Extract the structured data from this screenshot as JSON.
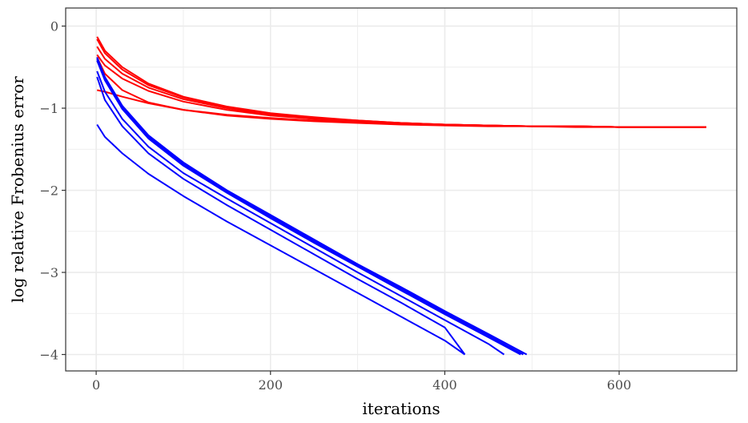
{
  "chart_data": {
    "type": "line",
    "title": "",
    "xlabel": "iterations",
    "ylabel": "log relative Frobenius error",
    "xlim": [
      -35,
      735
    ],
    "ylim": [
      -4.2,
      0.22
    ],
    "x_ticks": [
      0,
      200,
      400,
      600
    ],
    "x_tick_labels": [
      "0",
      "200",
      "400",
      "600"
    ],
    "y_ticks": [
      0,
      -1,
      -2,
      -3,
      -4
    ],
    "y_tick_labels": [
      "0",
      "−1",
      "−2",
      "−3",
      "−4"
    ],
    "grid": true,
    "legend": "none",
    "colors": {
      "red": "#ff0000",
      "blue": "#0000ff",
      "grid": "#ebebeb",
      "border": "#333333"
    },
    "series": [
      {
        "color": "#ff0000",
        "x": [
          1,
          10,
          30,
          60,
          100,
          150,
          200,
          250,
          300,
          350,
          400,
          450,
          500,
          550,
          600,
          650,
          700
        ],
        "y": [
          -0.13,
          -0.3,
          -0.5,
          -0.7,
          -0.86,
          -0.98,
          -1.06,
          -1.11,
          -1.15,
          -1.18,
          -1.2,
          -1.21,
          -1.22,
          -1.22,
          -1.23,
          -1.23,
          -1.23
        ]
      },
      {
        "color": "#ff0000",
        "x": [
          1,
          10,
          30,
          60,
          100,
          150,
          200,
          250,
          300,
          350,
          400,
          450,
          500,
          550,
          600,
          650,
          700
        ],
        "y": [
          -0.16,
          -0.33,
          -0.53,
          -0.72,
          -0.87,
          -0.99,
          -1.07,
          -1.12,
          -1.15,
          -1.18,
          -1.2,
          -1.21,
          -1.22,
          -1.22,
          -1.23,
          -1.23,
          -1.23
        ]
      },
      {
        "color": "#ff0000",
        "x": [
          1,
          10,
          30,
          60,
          100,
          150,
          200,
          250,
          300,
          350,
          400,
          450,
          500,
          550,
          600,
          650,
          700
        ],
        "y": [
          -0.25,
          -0.4,
          -0.58,
          -0.75,
          -0.89,
          -1.0,
          -1.08,
          -1.13,
          -1.16,
          -1.18,
          -1.2,
          -1.21,
          -1.22,
          -1.22,
          -1.23,
          -1.23,
          -1.23
        ]
      },
      {
        "color": "#ff0000",
        "x": [
          1,
          10,
          30,
          60,
          100,
          150,
          200,
          250,
          300,
          350,
          400,
          450,
          500,
          550,
          600,
          650,
          700
        ],
        "y": [
          -0.35,
          -0.48,
          -0.64,
          -0.79,
          -0.92,
          -1.02,
          -1.09,
          -1.13,
          -1.16,
          -1.19,
          -1.2,
          -1.21,
          -1.22,
          -1.22,
          -1.23,
          -1.23,
          -1.23
        ]
      },
      {
        "color": "#ff0000",
        "x": [
          1,
          10,
          30,
          60,
          100,
          150,
          200,
          250,
          300,
          350,
          400,
          450,
          500,
          550,
          600,
          650,
          700
        ],
        "y": [
          -0.38,
          -0.58,
          -0.78,
          -0.93,
          -1.02,
          -1.09,
          -1.13,
          -1.16,
          -1.18,
          -1.2,
          -1.21,
          -1.22,
          -1.22,
          -1.23,
          -1.23,
          -1.23,
          -1.23
        ]
      },
      {
        "color": "#ff0000",
        "x": [
          1,
          10,
          30,
          60,
          100,
          150,
          200,
          250,
          300,
          350,
          400,
          450,
          500,
          550,
          600,
          650,
          700
        ],
        "y": [
          -0.78,
          -0.8,
          -0.86,
          -0.94,
          -1.02,
          -1.08,
          -1.12,
          -1.15,
          -1.17,
          -1.19,
          -1.2,
          -1.21,
          -1.22,
          -1.22,
          -1.23,
          -1.23,
          -1.23
        ]
      },
      {
        "color": "#0000ff",
        "x": [
          1,
          10,
          30,
          60,
          100,
          150,
          200,
          250,
          300,
          350,
          400,
          450,
          494
        ],
        "y": [
          -0.38,
          -0.62,
          -0.97,
          -1.33,
          -1.66,
          -2.0,
          -2.3,
          -2.6,
          -2.9,
          -3.18,
          -3.47,
          -3.75,
          -4.0
        ]
      },
      {
        "color": "#0000ff",
        "x": [
          1,
          10,
          30,
          60,
          100,
          150,
          200,
          250,
          300,
          350,
          400,
          450,
          490
        ],
        "y": [
          -0.4,
          -0.64,
          -0.99,
          -1.35,
          -1.68,
          -2.02,
          -2.32,
          -2.62,
          -2.91,
          -3.2,
          -3.49,
          -3.77,
          -4.0
        ]
      },
      {
        "color": "#0000ff",
        "x": [
          1,
          10,
          30,
          60,
          100,
          150,
          200,
          250,
          300,
          350,
          400,
          450,
          487
        ],
        "y": [
          -0.42,
          -0.66,
          -1.01,
          -1.37,
          -1.7,
          -2.03,
          -2.34,
          -2.64,
          -2.93,
          -3.22,
          -3.51,
          -3.79,
          -4.0
        ]
      },
      {
        "color": "#0000ff",
        "x": [
          1,
          10,
          30,
          60,
          100,
          150,
          200,
          250,
          300,
          350,
          400,
          450,
          468
        ],
        "y": [
          -0.55,
          -0.8,
          -1.13,
          -1.47,
          -1.79,
          -2.1,
          -2.4,
          -2.7,
          -3.0,
          -3.29,
          -3.58,
          -3.87,
          -4.0
        ]
      },
      {
        "color": "#0000ff",
        "x": [
          1,
          10,
          30,
          60,
          100,
          150,
          200,
          250,
          300,
          350,
          400,
          423
        ],
        "y": [
          -0.62,
          -0.9,
          -1.22,
          -1.55,
          -1.86,
          -2.18,
          -2.48,
          -2.78,
          -3.08,
          -3.37,
          -3.67,
          -4.0
        ]
      },
      {
        "color": "#0000ff",
        "x": [
          1,
          10,
          30,
          60,
          100,
          150,
          200,
          250,
          300,
          350,
          400,
          423
        ],
        "y": [
          -1.2,
          -1.35,
          -1.55,
          -1.8,
          -2.07,
          -2.38,
          -2.67,
          -2.96,
          -3.25,
          -3.54,
          -3.83,
          -4.0
        ]
      }
    ]
  }
}
